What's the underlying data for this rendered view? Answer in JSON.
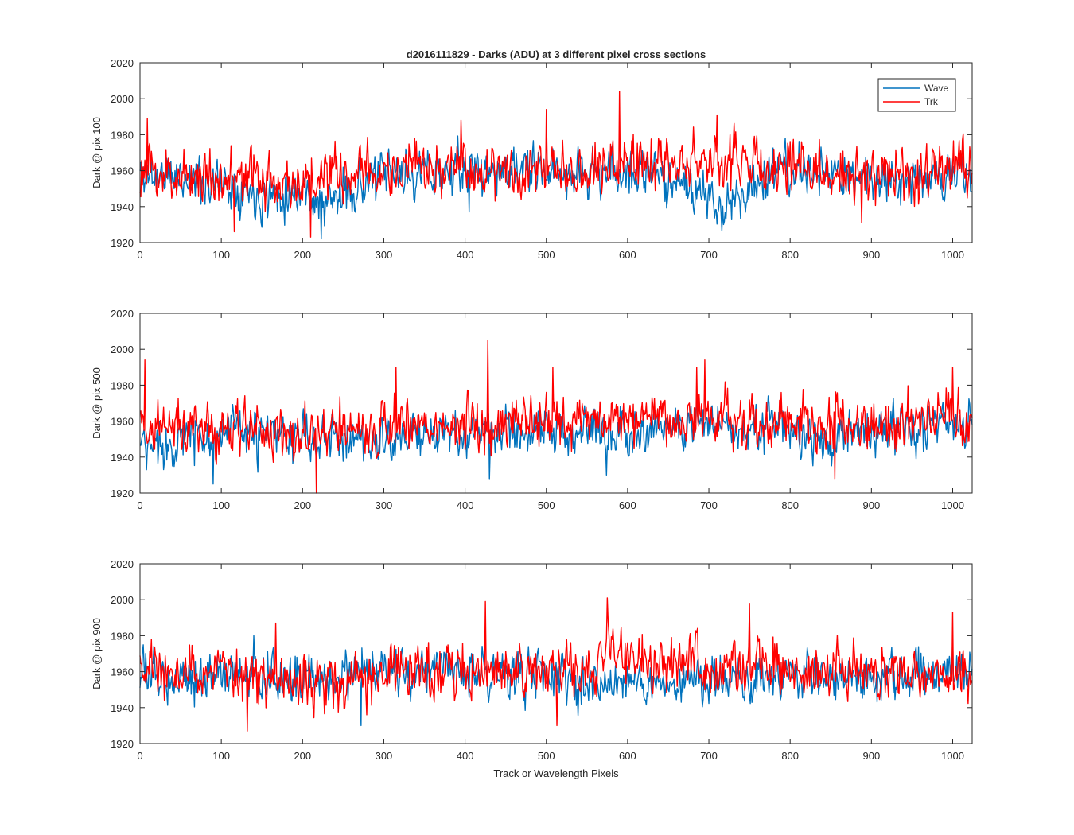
{
  "figure_title": "d2016111829 - Darks (ADU) at 3 different pixel cross sections",
  "xlabel": "Track or Wavelength Pixels",
  "legend": [
    {
      "label": "Wave",
      "color": "#0072BD"
    },
    {
      "label": "Trk",
      "color": "#FF0000"
    }
  ],
  "colors": {
    "wave": "#0072BD",
    "trk": "#FF0000",
    "axis": "#262626"
  },
  "chart_data": [
    {
      "type": "line",
      "title": "d2016111829 - Darks (ADU) at 3 different pixel cross sections",
      "xlabel": "",
      "ylabel": "Dark @ pix 100",
      "xlim": [
        0,
        1024
      ],
      "ylim": [
        1920,
        2020
      ],
      "xticks": [
        "0",
        "100",
        "200",
        "300",
        "400",
        "500",
        "600",
        "700",
        "800",
        "900",
        "1000"
      ],
      "yticks": [
        "1920",
        "1940",
        "1960",
        "1980",
        "2000",
        "2020"
      ],
      "legend_location": "top-right",
      "series": [
        {
          "name": "Wave",
          "color": "#0072BD",
          "baseline": [
            [
              0,
              1958
            ],
            [
              60,
              1956
            ],
            [
              120,
              1952
            ],
            [
              150,
              1946
            ],
            [
              200,
              1950
            ],
            [
              225,
              1940
            ],
            [
              260,
              1950
            ],
            [
              300,
              1957
            ],
            [
              400,
              1960
            ],
            [
              500,
              1959
            ],
            [
              600,
              1959
            ],
            [
              660,
              1956
            ],
            [
              700,
              1942
            ],
            [
              720,
              1940
            ],
            [
              760,
              1955
            ],
            [
              800,
              1960
            ],
            [
              900,
              1956
            ],
            [
              1024,
              1957
            ]
          ],
          "noise": 7,
          "spikes": [
            [
              223,
              1922
            ],
            [
              405,
              1937
            ],
            [
              718,
              1930
            ],
            [
              990,
              1943
            ]
          ],
          "seed": 11
        },
        {
          "name": "Trk",
          "color": "#FF0000",
          "baseline": [
            [
              0,
              1958
            ],
            [
              100,
              1957
            ],
            [
              200,
              1953
            ],
            [
              300,
              1960
            ],
            [
              500,
              1962
            ],
            [
              700,
              1966
            ],
            [
              800,
              1962
            ],
            [
              900,
              1956
            ],
            [
              1024,
              1962
            ]
          ],
          "noise": 8,
          "spikes": [
            [
              9,
              1989
            ],
            [
              116,
              1926
            ],
            [
              210,
              1923
            ],
            [
              395,
              1988
            ],
            [
              500,
              1994
            ],
            [
              590,
              2004
            ],
            [
              710,
              1991
            ],
            [
              888,
              1931
            ]
          ],
          "seed": 23
        }
      ]
    },
    {
      "type": "line",
      "title": "",
      "xlabel": "",
      "ylabel": "Dark @ pix 500",
      "xlim": [
        0,
        1024
      ],
      "ylim": [
        1920,
        2020
      ],
      "xticks": [
        "0",
        "100",
        "200",
        "300",
        "400",
        "500",
        "600",
        "700",
        "800",
        "900",
        "1000"
      ],
      "yticks": [
        "1920",
        "1940",
        "1960",
        "1980",
        "2000",
        "2020"
      ],
      "series": [
        {
          "name": "Wave",
          "color": "#0072BD",
          "baseline": [
            [
              0,
              1946
            ],
            [
              30,
              1948
            ],
            [
              100,
              1954
            ],
            [
              200,
              1950
            ],
            [
              300,
              1950
            ],
            [
              400,
              1953
            ],
            [
              500,
              1955
            ],
            [
              600,
              1956
            ],
            [
              700,
              1958
            ],
            [
              800,
              1957
            ],
            [
              840,
              1945
            ],
            [
              880,
              1955
            ],
            [
              950,
              1957
            ],
            [
              1024,
              1958
            ]
          ],
          "noise": 7,
          "spikes": [
            [
              8,
              1933
            ],
            [
              90,
              1925
            ],
            [
              430,
              1928
            ],
            [
              574,
              1930
            ],
            [
              1015,
              1945
            ]
          ],
          "seed": 37
        },
        {
          "name": "Trk",
          "color": "#FF0000",
          "baseline": [
            [
              0,
              1958
            ],
            [
              100,
              1955
            ],
            [
              200,
              1952
            ],
            [
              300,
              1956
            ],
            [
              400,
              1958
            ],
            [
              500,
              1960
            ],
            [
              600,
              1962
            ],
            [
              700,
              1962
            ],
            [
              800,
              1960
            ],
            [
              900,
              1958
            ],
            [
              1024,
              1962
            ]
          ],
          "noise": 8,
          "spikes": [
            [
              6,
              1994
            ],
            [
              217,
              1920
            ],
            [
              315,
              1990
            ],
            [
              428,
              2005
            ],
            [
              508,
              1990
            ],
            [
              685,
              1990
            ],
            [
              695,
              1994
            ],
            [
              855,
              1928
            ],
            [
              1000,
              1990
            ]
          ],
          "seed": 41
        }
      ]
    },
    {
      "type": "line",
      "title": "",
      "xlabel": "Track or Wavelength Pixels",
      "ylabel": "Dark @ pix 900",
      "xlim": [
        0,
        1024
      ],
      "ylim": [
        1920,
        2020
      ],
      "xticks": [
        "0",
        "100",
        "200",
        "300",
        "400",
        "500",
        "600",
        "700",
        "800",
        "900",
        "1000"
      ],
      "yticks": [
        "1920",
        "1940",
        "1960",
        "1980",
        "2000",
        "2020"
      ],
      "series": [
        {
          "name": "Wave",
          "color": "#0072BD",
          "baseline": [
            [
              0,
              1958
            ],
            [
              100,
              1958
            ],
            [
              200,
              1956
            ],
            [
              300,
              1960
            ],
            [
              400,
              1960
            ],
            [
              500,
              1958
            ],
            [
              560,
              1953
            ],
            [
              600,
              1955
            ],
            [
              700,
              1954
            ],
            [
              800,
              1958
            ],
            [
              900,
              1957
            ],
            [
              1024,
              1958
            ]
          ],
          "noise": 7,
          "spikes": [
            [
              140,
              1980
            ],
            [
              272,
              1930
            ],
            [
              1000,
              1980
            ]
          ],
          "seed": 53
        },
        {
          "name": "Trk",
          "color": "#FF0000",
          "baseline": [
            [
              0,
              1962
            ],
            [
              100,
              1958
            ],
            [
              200,
              1955
            ],
            [
              300,
              1958
            ],
            [
              400,
              1961
            ],
            [
              500,
              1960
            ],
            [
              560,
              1962
            ],
            [
              580,
              1975
            ],
            [
              600,
              1965
            ],
            [
              700,
              1962
            ],
            [
              750,
              1964
            ],
            [
              800,
              1960
            ],
            [
              900,
              1960
            ],
            [
              1024,
              1958
            ]
          ],
          "noise": 8,
          "spikes": [
            [
              167,
              1987
            ],
            [
              132,
              1927
            ],
            [
              425,
              1999
            ],
            [
              513,
              1930
            ],
            [
              575,
              2001
            ],
            [
              750,
              1998
            ],
            [
              1000,
              1993
            ]
          ],
          "seed": 67
        }
      ]
    }
  ]
}
